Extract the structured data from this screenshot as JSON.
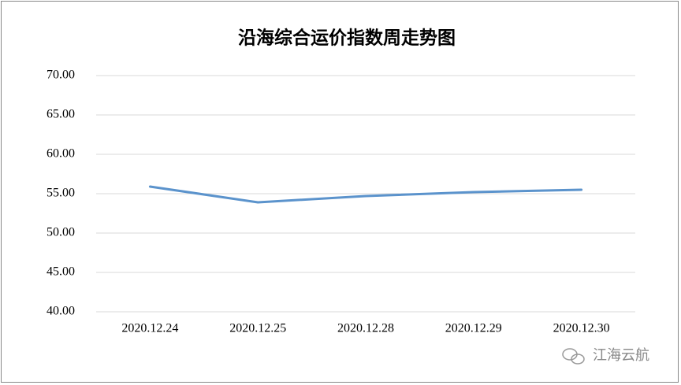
{
  "chart_data": {
    "type": "line",
    "title": "沿海综合运价指数周走势图",
    "categories": [
      "2020.12.24",
      "2020.12.25",
      "2020.12.28",
      "2020.12.29",
      "2020.12.30"
    ],
    "values": [
      55.9,
      53.9,
      54.7,
      55.2,
      55.5
    ],
    "color": "#5b93cc",
    "ylim": [
      40,
      70
    ],
    "yticks": [
      {
        "value": 40,
        "label": "40.00"
      },
      {
        "value": 45,
        "label": "45.00"
      },
      {
        "value": 50,
        "label": "50.00"
      },
      {
        "value": 55,
        "label": "55.00"
      },
      {
        "value": 60,
        "label": "60.00"
      },
      {
        "value": 65,
        "label": "65.00"
      },
      {
        "value": 70,
        "label": "70.00"
      }
    ],
    "grid": true
  },
  "watermark": "江海云航"
}
